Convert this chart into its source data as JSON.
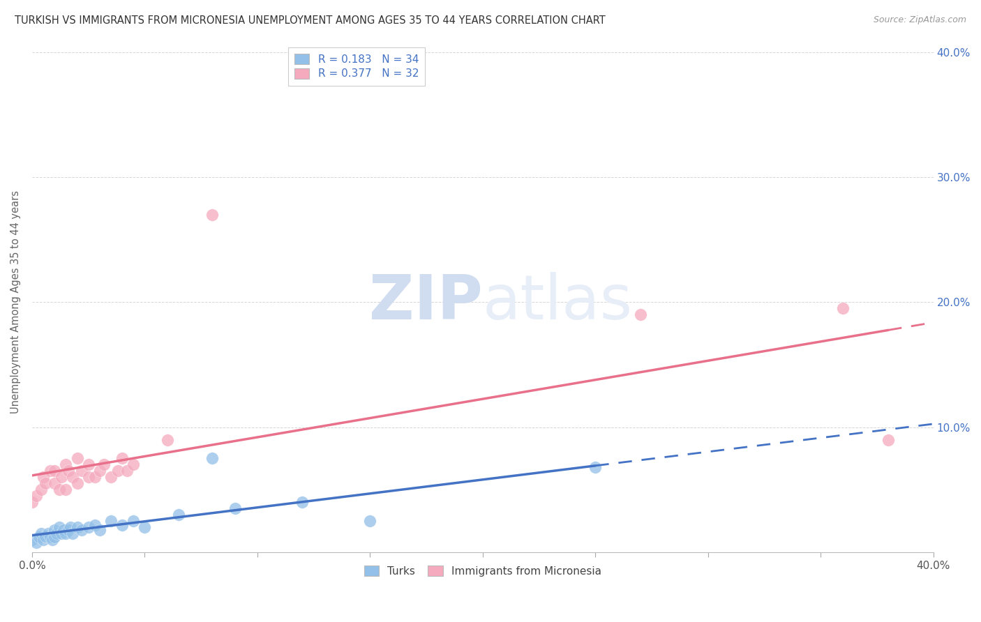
{
  "title": "TURKISH VS IMMIGRANTS FROM MICRONESIA UNEMPLOYMENT AMONG AGES 35 TO 44 YEARS CORRELATION CHART",
  "source": "Source: ZipAtlas.com",
  "ylabel": "Unemployment Among Ages 35 to 44 years",
  "xlim": [
    0.0,
    0.4
  ],
  "ylim": [
    0.0,
    0.4
  ],
  "watermark_zip": "ZIP",
  "watermark_atlas": "atlas",
  "blue_R": 0.183,
  "blue_N": 34,
  "pink_R": 0.377,
  "pink_N": 32,
  "blue_color": "#92C0E8",
  "pink_color": "#F5AABE",
  "blue_line_color": "#4472C4",
  "pink_line_color": "#E8708A",
  "turks_x": [
    0.0,
    0.002,
    0.003,
    0.004,
    0.005,
    0.006,
    0.007,
    0.008,
    0.009,
    0.01,
    0.01,
    0.011,
    0.012,
    0.013,
    0.014,
    0.015,
    0.016,
    0.017,
    0.018,
    0.02,
    0.022,
    0.025,
    0.028,
    0.03,
    0.035,
    0.04,
    0.045,
    0.05,
    0.065,
    0.08,
    0.09,
    0.12,
    0.15,
    0.25
  ],
  "turks_y": [
    0.01,
    0.008,
    0.012,
    0.015,
    0.01,
    0.013,
    0.015,
    0.012,
    0.01,
    0.012,
    0.018,
    0.015,
    0.02,
    0.015,
    0.018,
    0.015,
    0.018,
    0.02,
    0.015,
    0.02,
    0.018,
    0.02,
    0.022,
    0.018,
    0.025,
    0.022,
    0.025,
    0.02,
    0.03,
    0.075,
    0.035,
    0.04,
    0.025,
    0.068
  ],
  "micro_x": [
    0.0,
    0.002,
    0.004,
    0.005,
    0.006,
    0.008,
    0.01,
    0.01,
    0.012,
    0.013,
    0.015,
    0.015,
    0.016,
    0.018,
    0.02,
    0.02,
    0.022,
    0.025,
    0.025,
    0.028,
    0.03,
    0.032,
    0.035,
    0.038,
    0.04,
    0.042,
    0.045,
    0.06,
    0.08,
    0.27,
    0.36,
    0.38
  ],
  "micro_y": [
    0.04,
    0.045,
    0.05,
    0.06,
    0.055,
    0.065,
    0.055,
    0.065,
    0.05,
    0.06,
    0.05,
    0.07,
    0.065,
    0.06,
    0.055,
    0.075,
    0.065,
    0.06,
    0.07,
    0.06,
    0.065,
    0.07,
    0.06,
    0.065,
    0.075,
    0.065,
    0.07,
    0.09,
    0.27,
    0.19,
    0.195,
    0.09
  ],
  "blue_trend_start_x": 0.0,
  "blue_trend_solid_end_x": 0.25,
  "blue_trend_dashed_end_x": 0.4,
  "pink_trend_start_x": 0.0,
  "pink_trend_solid_end_x": 0.38,
  "pink_trend_dashed_end_x": 0.4
}
